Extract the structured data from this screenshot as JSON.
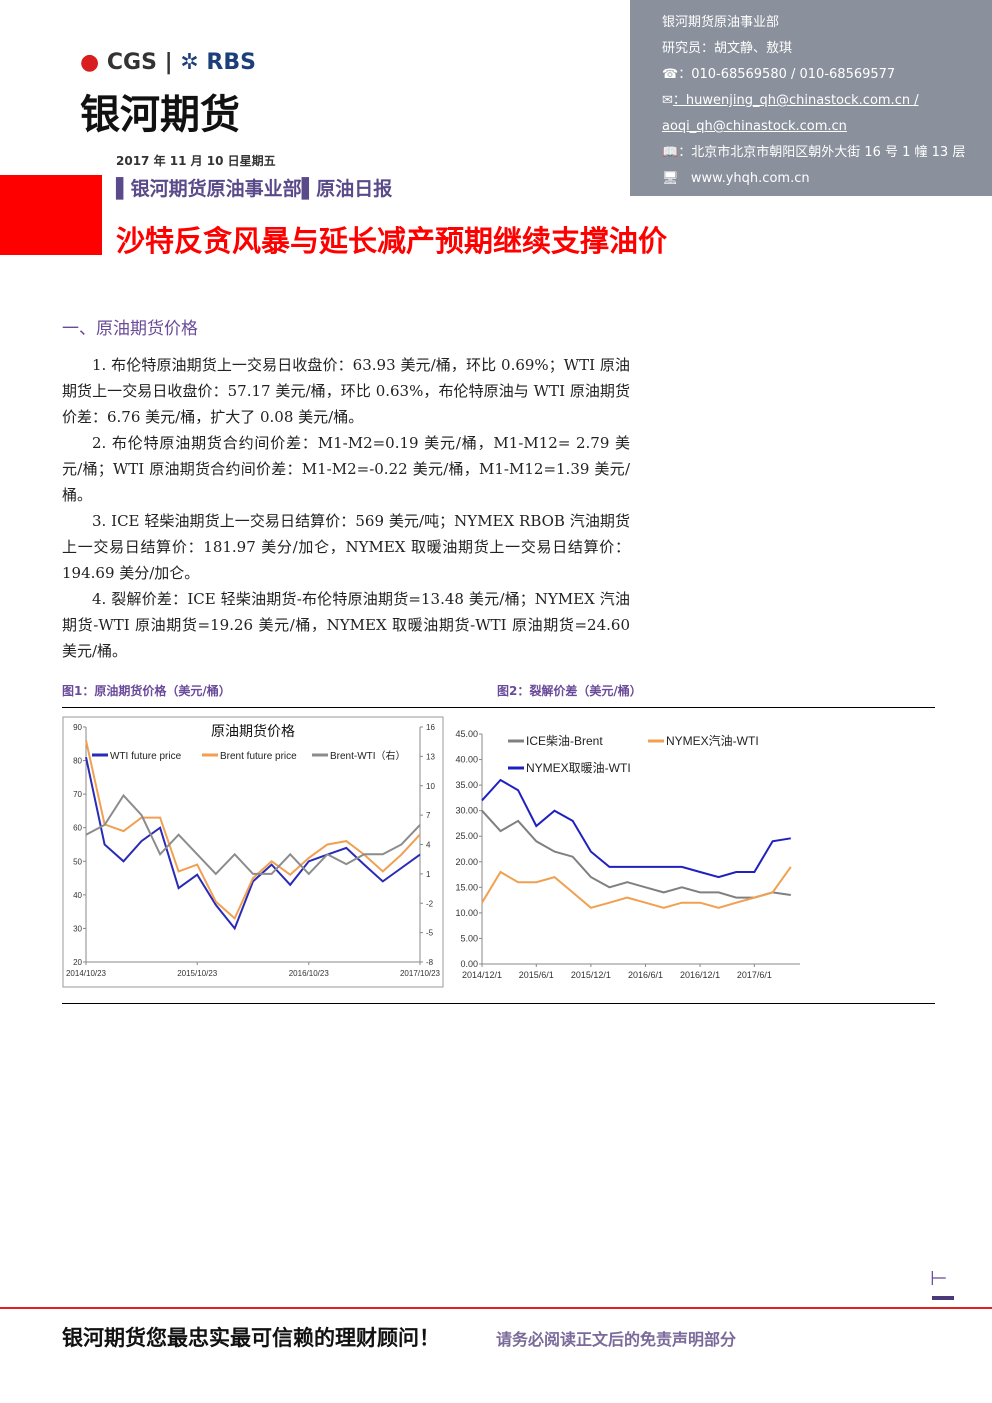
{
  "header": {
    "logo_brand": "CGS",
    "logo_partner": "RBS",
    "company": "银河期货",
    "contact": [
      "银河期货原油事业部",
      "研究员：胡文静、敖琪",
      "：010-68569580 / 010-68569577",
      "：huwenjing_qh@chinastock.com.cn /",
      "aoqi_qh@chinastock.com.cn",
      "：北京市北京市朝阳区朝外大街 16 号 1 幢 13 层",
      "www.yhqh.com.cn"
    ],
    "date": "2017 年 11 月 10 日星期五",
    "department": "银河期货原油事业部",
    "report": "原油日报",
    "headline": "沙特反贪风暴与延长减产预期继续支撑油价"
  },
  "section": {
    "title": "一、原油期货价格",
    "paragraphs": [
      "1. 布伦特原油期货上一交易日收盘价：63.93 美元/桶，环比 0.69%；WTI 原油期货上一交易日收盘价：57.17 美元/桶，环比 0.63%，布伦特原油与 WTI 原油期货价差：6.76 美元/桶，扩大了 0.08 美元/桶。",
      "2. 布伦特原油期货合约间价差：M1-M2=0.19 美元/桶，M1-M12= 2.79 美元/桶；WTI 原油期货合约间价差：M1-M2=-0.22 美元/桶，M1-M12=1.39 美元/桶。",
      "3. ICE 轻柴油期货上一交易日结算价：569 美元/吨；NYMEX RBOB 汽油期货上一交易日结算价：181.97 美分/加仑，NYMEX 取暖油期货上一交易日结算价：194.69 美分/加仑。",
      "4. 裂解价差：ICE 轻柴油期货-布伦特原油期货=13.48 美元/桶；NYMEX 汽油期货-WTI 原油期货=19.26 美元/桶，NYMEX 取暖油期货-WTI 原油期货=24.60 美元/桶。"
    ]
  },
  "figures": [
    {
      "caption": "图1：原油期货价格（美元/桶）",
      "chart": {
        "type": "line",
        "title": "原油期货价格",
        "x": [
          "2014/10/23",
          "2014/12/23",
          "2015/2/23",
          "2015/4/23",
          "2015/6/23",
          "2015/8/23",
          "2015/10/23",
          "2015/12/23",
          "2016/2/23",
          "2016/4/23",
          "2016/6/23",
          "2016/8/23",
          "2016/10/23",
          "2016/12/23",
          "2017/2/23",
          "2017/4/23",
          "2017/6/23",
          "2017/8/23",
          "2017/10/23"
        ],
        "xlim": [
          "2014/10/23",
          "2017/10/23"
        ],
        "xticks": [
          "2014/10/23",
          "2015/10/23",
          "2016/10/23",
          "2017/10/23"
        ],
        "ylim": [
          20,
          90
        ],
        "yticks": [
          20,
          30,
          40,
          50,
          60,
          70,
          80,
          90
        ],
        "y2lim": [
          -8,
          16
        ],
        "y2ticks": [
          -8,
          -5,
          -2,
          1,
          4,
          7,
          10,
          13,
          16
        ],
        "series": [
          {
            "name": "WTI future price",
            "color": "#2a2ab8",
            "values": [
              81,
              55,
              50,
              56,
              60,
              42,
              46,
              37,
              30,
              44,
              49,
              43,
              50,
              52,
              54,
              49,
              44,
              48,
              52
            ]
          },
          {
            "name": "Brent future price",
            "color": "#f0a050",
            "values": [
              86,
              61,
              59,
              63,
              63,
              47,
              49,
              38,
              33,
              45,
              50,
              46,
              51,
              55,
              56,
              52,
              47,
              52,
              58
            ]
          },
          {
            "name": "Brent-WTI（右）",
            "color": "#8c8c8c",
            "axis": "y2",
            "values": [
              5,
              6,
              9,
              7,
              3,
              5,
              3,
              1,
              3,
              1,
              1,
              3,
              1,
              3,
              2,
              3,
              3,
              4,
              6
            ]
          }
        ]
      }
    },
    {
      "caption": "图2：裂解价差（美元/桶）",
      "chart": {
        "type": "line",
        "x": [
          "2014/12/1",
          "2015/2/1",
          "2015/4/1",
          "2015/6/1",
          "2015/8/1",
          "2015/10/1",
          "2015/12/1",
          "2016/2/1",
          "2016/4/1",
          "2016/6/1",
          "2016/8/1",
          "2016/10/1",
          "2016/12/1",
          "2017/2/1",
          "2017/4/1",
          "2017/6/1",
          "2017/8/1",
          "2017/10/1"
        ],
        "xlim": [
          "2014/12/1",
          "2017/11/1"
        ],
        "xticks": [
          "2014/12/1",
          "2015/6/1",
          "2015/12/1",
          "2016/6/1",
          "2016/12/1",
          "2017/6/1"
        ],
        "ylim": [
          0,
          45
        ],
        "yticks": [
          {
            "value": 0,
            "label": "0.00"
          },
          {
            "value": 5,
            "label": "5.00"
          },
          {
            "value": 10,
            "label": "10.00"
          },
          {
            "value": 15,
            "label": "15.00"
          },
          {
            "value": 20,
            "label": "20.00"
          },
          {
            "value": 25,
            "label": "25.00"
          },
          {
            "value": 30,
            "label": "30.00"
          },
          {
            "value": 35,
            "label": "35.00"
          },
          {
            "value": 40,
            "label": "40.00"
          },
          {
            "value": 45,
            "label": "45.00"
          }
        ],
        "series": [
          {
            "name": "ICE柴油-Brent",
            "color": "#808080",
            "values": [
              30,
              26,
              28,
              24,
              22,
              21,
              17,
              15,
              16,
              15,
              14,
              15,
              14,
              14,
              13,
              13,
              14,
              13.5
            ]
          },
          {
            "name": "NYMEX汽油-WTI",
            "color": "#f0a050",
            "values": [
              12,
              18,
              16,
              16,
              17,
              14,
              11,
              12,
              13,
              12,
              11,
              12,
              12,
              11,
              12,
              13,
              14,
              19
            ]
          },
          {
            "name": "NYMEX取暖油-WTI",
            "color": "#2020c0",
            "values": [
              32,
              36,
              34,
              27,
              30,
              28,
              22,
              19,
              19,
              19,
              19,
              19,
              18,
              17,
              18,
              18,
              24,
              24.6
            ]
          }
        ]
      }
    }
  ],
  "footer": {
    "slogan": "银河期货您最忠实最可信赖的理财顾问！",
    "disclaimer": "请务必阅读正文后的免责声明部分"
  }
}
